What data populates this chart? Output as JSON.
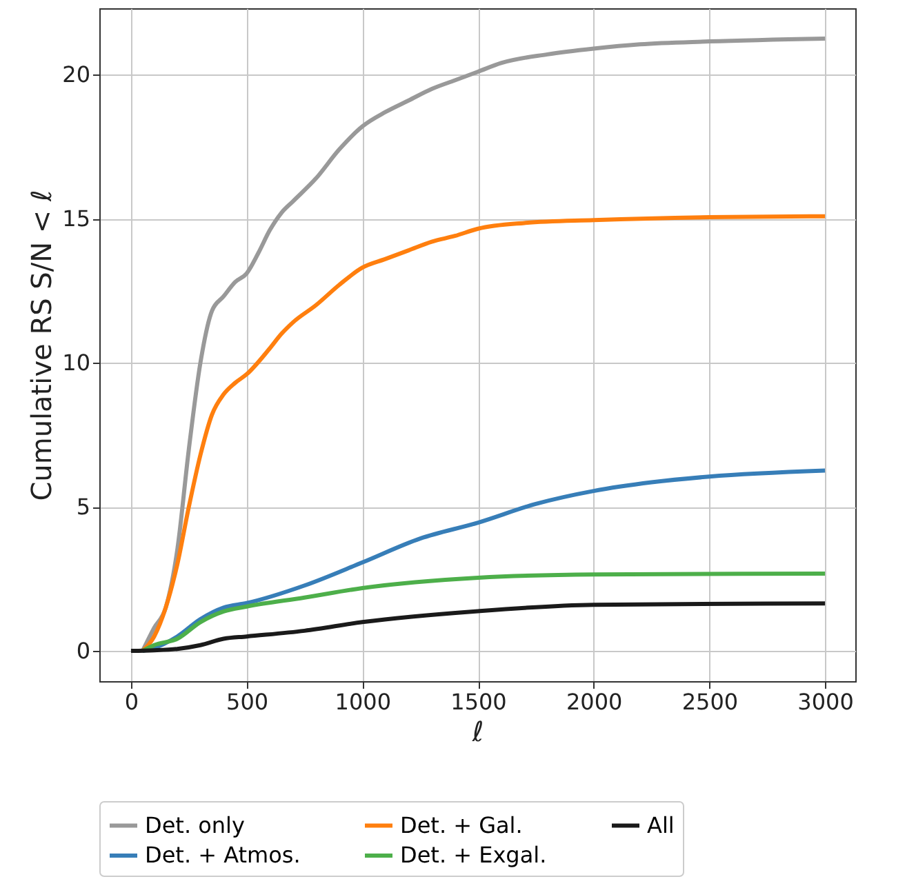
{
  "chart_data": {
    "type": "line",
    "xlabel": "ℓ",
    "ylabel": "Cumulative RS S/N  < ℓ",
    "xlim": [
      -137,
      3131
    ],
    "ylim": [
      -1.05,
      22.3
    ],
    "xticks": [
      0,
      500,
      1000,
      1500,
      2000,
      2500,
      3000
    ],
    "yticks": [
      0,
      5,
      10,
      15,
      20
    ],
    "grid": true,
    "legend": "bottom",
    "line_style": "solid",
    "marker": "none",
    "series": [
      {
        "name": "Det. only",
        "color": "#999999",
        "x": [
          50,
          100,
          150,
          200,
          250,
          300,
          350,
          400,
          450,
          500,
          550,
          600,
          650,
          700,
          800,
          900,
          1000,
          1100,
          1200,
          1300,
          1400,
          1500,
          1600,
          1800,
          2000,
          2200,
          2500,
          3000
        ],
        "values": [
          0,
          0.8,
          1.5,
          3.5,
          7,
          10,
          11.8,
          12.3,
          12.8,
          13.1,
          13.8,
          14.6,
          15.2,
          15.6,
          16.4,
          17.4,
          18.2,
          18.7,
          19.1,
          19.5,
          19.8,
          20.1,
          20.4,
          20.7,
          20.9,
          21.05,
          21.15,
          21.25
        ]
      },
      {
        "name": "Det. + Atmos.",
        "color": "#377eb8",
        "x": [
          50,
          100,
          200,
          300,
          400,
          500,
          750,
          1000,
          1250,
          1500,
          1750,
          2000,
          2250,
          2500,
          3000
        ],
        "values": [
          0,
          0.1,
          0.5,
          1.1,
          1.5,
          1.66,
          2.27,
          3.07,
          3.9,
          4.45,
          5.1,
          5.55,
          5.85,
          6.05,
          6.26
        ]
      },
      {
        "name": "Det. + Gal.",
        "color": "#ff7f0e",
        "x": [
          50,
          100,
          150,
          200,
          250,
          300,
          350,
          400,
          450,
          500,
          600,
          650,
          700,
          800,
          900,
          1000,
          1100,
          1200,
          1300,
          1400,
          1500,
          1700,
          2000,
          2500,
          3000
        ],
        "values": [
          0,
          0.5,
          1.5,
          3,
          5,
          6.8,
          8.2,
          8.9,
          9.3,
          9.6,
          10.5,
          11,
          11.4,
          12,
          12.7,
          13.3,
          13.6,
          13.9,
          14.2,
          14.4,
          14.65,
          14.85,
          14.95,
          15.05,
          15.08
        ]
      },
      {
        "name": "Det. + Exgal.",
        "color": "#4daf4a",
        "x": [
          50,
          100,
          200,
          300,
          400,
          500,
          750,
          1000,
          1500,
          2000,
          3000
        ],
        "values": [
          0,
          0.2,
          0.42,
          1.0,
          1.37,
          1.54,
          1.85,
          2.18,
          2.54,
          2.65,
          2.68
        ]
      },
      {
        "name": "All",
        "color": "#1a1a1a",
        "x": [
          0,
          100,
          200,
          300,
          400,
          500,
          750,
          1000,
          1500,
          2000,
          3000
        ],
        "values": [
          0,
          0.02,
          0.07,
          0.2,
          0.42,
          0.5,
          0.7,
          1.0,
          1.38,
          1.6,
          1.65
        ]
      }
    ]
  }
}
